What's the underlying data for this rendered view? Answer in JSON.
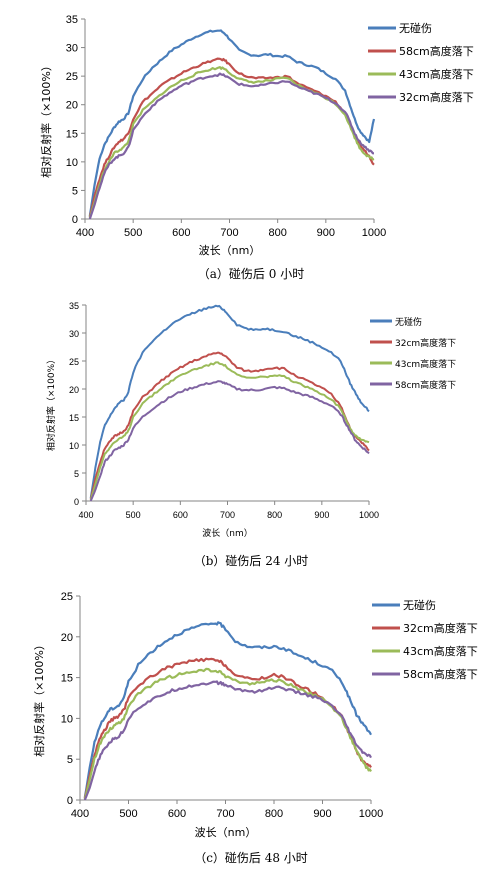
{
  "chart_data": [
    {
      "type": "line",
      "caption": "（a）碰伤后  0  小时",
      "xlabel": "波长（nm）",
      "ylabel": "相对反射率（×100%）",
      "xlim": [
        400,
        1000
      ],
      "ylim": [
        0,
        35
      ],
      "xticks": [
        "400",
        "500",
        "600",
        "700",
        "800",
        "900",
        "1000"
      ],
      "yticks": [
        "0",
        "5",
        "10",
        "15",
        "20",
        "25",
        "30",
        "35"
      ],
      "grid": false,
      "legend_position": "right",
      "x": [
        410,
        420,
        430,
        440,
        450,
        460,
        470,
        480,
        490,
        500,
        520,
        540,
        560,
        580,
        600,
        620,
        640,
        660,
        680,
        690,
        700,
        720,
        740,
        760,
        780,
        800,
        820,
        840,
        860,
        880,
        900,
        920,
        940,
        950,
        960,
        970,
        980,
        990,
        1000
      ],
      "series": [
        {
          "name": "无碰伤",
          "color": "#4a7ebb",
          "values": [
            0.5,
            6.0,
            10.5,
            13.0,
            14.5,
            16.0,
            17.0,
            17.5,
            18.5,
            21.5,
            24.5,
            26.5,
            28.0,
            29.5,
            30.5,
            31.5,
            32.3,
            32.8,
            33.0,
            32.5,
            31.5,
            29.5,
            28.8,
            28.6,
            28.8,
            28.5,
            28.5,
            27.5,
            27.0,
            26.5,
            25.5,
            24.5,
            22.5,
            20.0,
            17.5,
            15.5,
            14.5,
            13.5,
            17.5
          ]
        },
        {
          "name": "58cm高度落下",
          "color": "#c0504d",
          "values": [
            0.3,
            4.0,
            7.0,
            9.5,
            11.0,
            12.5,
            13.5,
            14.0,
            15.0,
            17.5,
            20.5,
            22.0,
            23.5,
            24.5,
            25.5,
            26.3,
            27.0,
            27.6,
            28.0,
            27.8,
            27.0,
            25.5,
            24.8,
            24.6,
            24.7,
            24.8,
            25.0,
            23.8,
            23.0,
            22.3,
            21.5,
            20.5,
            18.5,
            16.5,
            14.5,
            13.0,
            12.0,
            11.0,
            9.5
          ]
        },
        {
          "name": "43cm高度落下",
          "color": "#9bbb59",
          "values": [
            0.2,
            3.0,
            6.0,
            8.5,
            10.0,
            11.5,
            12.0,
            12.5,
            13.5,
            16.5,
            19.0,
            20.5,
            22.0,
            23.2,
            24.2,
            25.0,
            25.7,
            26.2,
            26.5,
            26.3,
            25.6,
            24.5,
            24.0,
            24.0,
            24.2,
            24.5,
            24.7,
            23.5,
            22.7,
            22.0,
            21.2,
            20.2,
            18.3,
            16.3,
            14.3,
            12.5,
            11.5,
            10.8,
            10.5
          ]
        },
        {
          "name": "32cm高度落下",
          "color": "#8064a2",
          "values": [
            0.0,
            2.5,
            5.5,
            8.0,
            9.5,
            10.5,
            11.0,
            11.5,
            12.5,
            15.5,
            18.0,
            19.8,
            21.2,
            22.3,
            23.3,
            24.0,
            24.6,
            25.0,
            25.3,
            25.1,
            24.6,
            23.6,
            23.3,
            23.3,
            23.6,
            23.9,
            24.1,
            23.2,
            22.5,
            21.9,
            21.2,
            20.3,
            18.8,
            17.0,
            15.0,
            13.5,
            12.7,
            12.0,
            11.5
          ]
        }
      ]
    },
    {
      "type": "line",
      "caption": "（b）碰伤后  24  小时",
      "xlabel": "波长（nm）",
      "ylabel": "相对反射率（×100%）",
      "xlim": [
        400,
        1000
      ],
      "ylim": [
        0,
        35
      ],
      "xticks": [
        "400",
        "500",
        "600",
        "700",
        "800",
        "900",
        "1000"
      ],
      "yticks": [
        "0",
        "5",
        "10",
        "15",
        "20",
        "25",
        "30",
        "35"
      ],
      "grid": false,
      "legend_position": "right",
      "x": [
        410,
        420,
        430,
        440,
        450,
        460,
        470,
        480,
        490,
        500,
        520,
        540,
        560,
        580,
        600,
        620,
        640,
        660,
        680,
        690,
        700,
        720,
        740,
        760,
        780,
        800,
        820,
        840,
        860,
        880,
        900,
        920,
        940,
        950,
        960,
        970,
        980,
        990,
        1000
      ],
      "series": [
        {
          "name": "无碰伤",
          "color": "#4a7ebb",
          "values": [
            0.5,
            6.0,
            10.5,
            13.5,
            15.0,
            16.5,
            17.5,
            18.0,
            19.5,
            23.0,
            26.5,
            28.5,
            30.0,
            31.5,
            32.5,
            33.3,
            34.0,
            34.5,
            34.8,
            34.3,
            33.5,
            31.5,
            30.8,
            30.5,
            30.8,
            30.5,
            30.3,
            29.5,
            29.0,
            28.3,
            27.5,
            26.5,
            25.0,
            23.0,
            21.0,
            19.5,
            18.0,
            17.0,
            16.0
          ]
        },
        {
          "name": "32cm高度落下",
          "color": "#c0504d",
          "values": [
            0.3,
            4.0,
            7.0,
            9.5,
            10.5,
            11.5,
            12.0,
            12.5,
            13.5,
            16.0,
            18.5,
            20.0,
            21.5,
            22.7,
            23.8,
            24.7,
            25.4,
            26.0,
            26.5,
            26.2,
            25.5,
            23.8,
            23.2,
            23.2,
            23.6,
            23.8,
            23.6,
            22.6,
            21.8,
            21.0,
            20.2,
            19.0,
            17.0,
            15.0,
            13.0,
            11.5,
            10.8,
            10.0,
            9.0
          ]
        },
        {
          "name": "43cm高度落下",
          "color": "#9bbb59",
          "values": [
            0.2,
            3.0,
            6.0,
            8.5,
            9.5,
            10.5,
            11.0,
            11.5,
            12.5,
            15.0,
            17.5,
            18.8,
            20.2,
            21.4,
            22.4,
            23.2,
            23.8,
            24.3,
            24.7,
            24.5,
            23.8,
            22.5,
            22.0,
            22.0,
            22.2,
            22.4,
            22.2,
            21.3,
            20.6,
            19.9,
            19.2,
            18.2,
            16.5,
            14.8,
            13.0,
            11.8,
            11.2,
            10.8,
            10.5
          ]
        },
        {
          "name": "58cm高度落下",
          "color": "#8064a2",
          "values": [
            0.0,
            2.0,
            4.5,
            7.0,
            8.0,
            9.0,
            9.5,
            10.0,
            11.0,
            13.0,
            15.0,
            16.4,
            17.6,
            18.6,
            19.5,
            20.1,
            20.6,
            21.0,
            21.3,
            21.2,
            20.8,
            20.0,
            19.8,
            19.8,
            20.0,
            20.3,
            20.1,
            19.5,
            19.0,
            18.5,
            17.8,
            17.0,
            15.5,
            14.0,
            12.5,
            11.0,
            10.0,
            9.3,
            8.5
          ]
        }
      ]
    },
    {
      "type": "line",
      "caption": "（c）碰伤后  48  小时",
      "xlabel": "波长（nm）",
      "ylabel": "相对反射率（×100%）",
      "xlim": [
        400,
        1000
      ],
      "ylim": [
        0,
        25
      ],
      "xticks": [
        "400",
        "500",
        "600",
        "700",
        "800",
        "900",
        "1000"
      ],
      "yticks": [
        "0",
        "5",
        "10",
        "15",
        "20",
        "25"
      ],
      "grid": false,
      "legend_position": "right",
      "x": [
        410,
        420,
        430,
        440,
        450,
        460,
        470,
        480,
        490,
        500,
        520,
        540,
        560,
        580,
        600,
        620,
        640,
        660,
        680,
        690,
        700,
        720,
        740,
        760,
        780,
        800,
        820,
        840,
        860,
        880,
        900,
        920,
        940,
        950,
        960,
        970,
        980,
        990,
        1000
      ],
      "series": [
        {
          "name": "无碰伤",
          "color": "#4a7ebb",
          "values": [
            0.3,
            4.0,
            7.0,
            9.0,
            10.0,
            11.0,
            11.3,
            11.6,
            12.5,
            14.5,
            16.5,
            17.8,
            18.8,
            19.6,
            20.3,
            20.8,
            21.2,
            21.5,
            21.7,
            21.5,
            21.0,
            19.5,
            18.9,
            18.7,
            18.7,
            18.8,
            18.6,
            18.0,
            17.5,
            17.0,
            16.5,
            15.8,
            14.5,
            13.2,
            11.8,
            10.5,
            9.6,
            8.8,
            8.0
          ]
        },
        {
          "name": "32cm高度落下",
          "color": "#c0504d",
          "values": [
            0.2,
            3.0,
            5.5,
            7.5,
            8.5,
            9.5,
            10.0,
            10.3,
            11.0,
            12.5,
            14.0,
            14.9,
            15.6,
            16.2,
            16.6,
            16.9,
            17.1,
            17.2,
            17.1,
            16.9,
            16.5,
            15.3,
            14.9,
            14.8,
            15.0,
            15.3,
            15.1,
            14.4,
            13.8,
            13.2,
            12.5,
            11.6,
            10.2,
            8.8,
            7.5,
            6.0,
            5.0,
            4.5,
            4.0
          ]
        },
        {
          "name": "43cm高度落下",
          "color": "#9bbb59",
          "values": [
            0.1,
            2.5,
            5.0,
            6.8,
            7.8,
            8.6,
            9.1,
            9.4,
            10.0,
            11.5,
            13.0,
            13.8,
            14.5,
            15.0,
            15.3,
            15.6,
            15.8,
            15.9,
            15.8,
            15.6,
            15.2,
            14.6,
            14.3,
            14.3,
            14.5,
            14.7,
            14.5,
            13.9,
            13.4,
            12.9,
            12.3,
            11.4,
            10.0,
            8.7,
            7.4,
            6.0,
            5.0,
            4.0,
            3.5
          ]
        },
        {
          "name": "58cm高度落下",
          "color": "#8064a2",
          "values": [
            0.0,
            1.5,
            3.5,
            5.2,
            6.2,
            7.0,
            7.5,
            7.8,
            8.5,
            10.0,
            11.3,
            12.0,
            12.6,
            13.2,
            13.6,
            13.9,
            14.1,
            14.3,
            14.4,
            14.3,
            14.1,
            13.6,
            13.4,
            13.3,
            13.5,
            13.8,
            13.7,
            13.3,
            13.0,
            12.7,
            12.2,
            11.5,
            10.2,
            9.0,
            7.8,
            6.8,
            6.0,
            5.6,
            5.2
          ]
        }
      ]
    }
  ]
}
